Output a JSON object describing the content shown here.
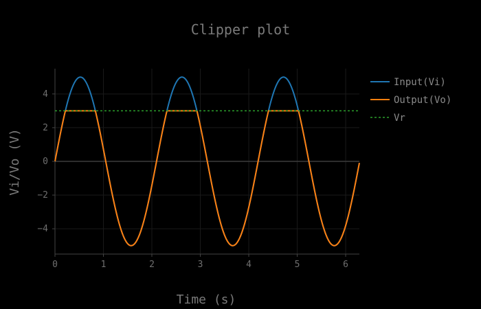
{
  "chart_data": {
    "type": "line",
    "title": "Clipper plot",
    "xlabel": "Time (s)",
    "ylabel": "Vi/Vo (V)",
    "xlim": [
      0,
      6.2832
    ],
    "ylim": [
      -5.5,
      5.5
    ],
    "xticks": [
      0,
      1,
      2,
      3,
      4,
      5,
      6
    ],
    "yticks": [
      -4,
      -2,
      0,
      2,
      4
    ],
    "tick_labels_x": [
      "0",
      "1",
      "2",
      "3",
      "4",
      "5",
      "6"
    ],
    "tick_labels_y": [
      "−4",
      "−2",
      "0",
      "2",
      "4"
    ],
    "grid": true,
    "legend_position": "top-right",
    "signal": {
      "amplitude": 5,
      "frequency_hz": 0.477,
      "t_start": 0,
      "t_end": 6.2832,
      "clip_level": 3
    },
    "series": [
      {
        "name": "Input(Vi)",
        "color": "#1f77b4",
        "style": "solid",
        "description": "5*sin(3t)"
      },
      {
        "name": "Output(Vo)",
        "color": "#ff7f0e",
        "style": "solid",
        "description": "min(Vi, Vr)"
      },
      {
        "name": "Vr",
        "color": "#2ca02c",
        "style": "dot",
        "value": 3
      }
    ]
  }
}
